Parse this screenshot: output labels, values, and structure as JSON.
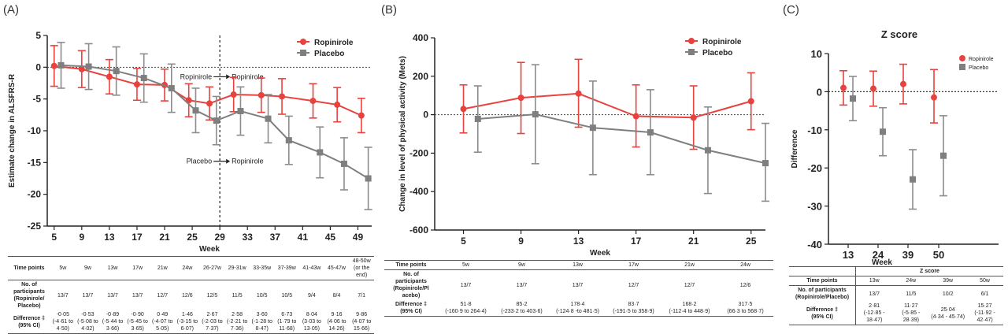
{
  "colors": {
    "ropinirole": "#e8423f",
    "placebo": "#7f7f7f",
    "ropinirole_err": "#e8423f",
    "placebo_err": "#8c8c8c"
  },
  "chart_data": [
    {
      "panel": "(A)",
      "type": "line",
      "title": "",
      "xlabel": "Week",
      "ylabel": "Estimate change in ALSFRS-R",
      "ylim": [
        -25,
        5
      ],
      "yticks": [
        5,
        0,
        -5,
        -10,
        -15,
        -20,
        -25
      ],
      "xticks": [
        5,
        9,
        13,
        17,
        21,
        25,
        29,
        33,
        37,
        41,
        45,
        49
      ],
      "xlim": [
        4,
        51
      ],
      "legend": "top-right",
      "series": [
        {
          "name": "Ropinirole",
          "marker": "circle",
          "x": [
            5,
            9,
            13,
            17,
            21,
            24.5,
            27.5,
            31,
            35,
            38,
            42.5,
            46,
            49.5
          ],
          "y": [
            0.2,
            -0.3,
            -1.5,
            -2.7,
            -2.8,
            -5.2,
            -5.7,
            -4.3,
            -4.4,
            -4.6,
            -5.3,
            -5.9,
            -7.6
          ],
          "lo": [
            -3.0,
            -3.2,
            -4.2,
            -5.2,
            -5.3,
            -7.8,
            -8.3,
            -7.0,
            -7.1,
            -7.4,
            -8.0,
            -8.6,
            -10.3
          ],
          "hi": [
            3.4,
            2.6,
            1.2,
            -0.2,
            -0.3,
            -2.6,
            -3.1,
            -1.6,
            -1.7,
            -1.8,
            -2.6,
            -3.2,
            -4.9
          ]
        },
        {
          "name": "Placebo",
          "marker": "square",
          "x": [
            6,
            10,
            14,
            18,
            22,
            25.5,
            28.5,
            32,
            36,
            39,
            43.5,
            47,
            50.5
          ],
          "y": [
            0.3,
            0.1,
            -0.6,
            -1.7,
            -3.3,
            -6.8,
            -8.4,
            -6.9,
            -8.1,
            -11.5,
            -13.4,
            -15.2,
            -17.5
          ],
          "lo": [
            -3.3,
            -3.5,
            -4.4,
            -5.5,
            -7.1,
            -10.3,
            -12.2,
            -10.7,
            -11.9,
            -15.3,
            -17.4,
            -19.3,
            -22.4
          ],
          "hi": [
            3.9,
            3.7,
            3.2,
            2.1,
            0.5,
            -3.3,
            -4.6,
            -3.1,
            -4.3,
            -7.7,
            -9.4,
            -11.1,
            -12.6
          ]
        }
      ],
      "annotations": [
        {
          "text": "Ropinirole",
          "arrow_to": "Ropinirole",
          "y": -1.5
        },
        {
          "text": "Placebo",
          "arrow_to": "Ropinirole",
          "y": -14.8
        }
      ],
      "vline_x": 29,
      "hline_y": 0
    },
    {
      "panel": "(B)",
      "type": "line",
      "title": "",
      "xlabel": "Week",
      "ylabel": "Change in level of physical activity (Mets)",
      "ylim": [
        -600,
        400
      ],
      "yticks": [
        400,
        200,
        0,
        -200,
        -400,
        -600
      ],
      "xticks": [
        5,
        9,
        13,
        17,
        21,
        25
      ],
      "xlim": [
        3,
        26
      ],
      "legend": "top-right",
      "series": [
        {
          "name": "Ropinirole",
          "marker": "circle",
          "x": [
            5,
            9,
            13,
            17,
            21,
            25
          ],
          "y": [
            30,
            88,
            110,
            -8,
            -15,
            70
          ],
          "lo": [
            -95,
            -98,
            -65,
            -168,
            -180,
            -78
          ],
          "hi": [
            155,
            272,
            288,
            155,
            150,
            218
          ]
        },
        {
          "name": "Placebo",
          "marker": "square",
          "x": [
            6,
            10,
            14,
            18,
            22,
            26
          ],
          "y": [
            -22,
            2,
            -68,
            -92,
            -185,
            -252
          ],
          "lo": [
            -195,
            -255,
            -312,
            -312,
            -410,
            -450
          ],
          "hi": [
            150,
            260,
            175,
            130,
            40,
            -45
          ]
        }
      ],
      "hline_y": 0
    },
    {
      "panel": "(C)",
      "type": "scatter",
      "title": "Z score",
      "xlabel": "Week",
      "ylabel": "Difference",
      "ylim": [
        -40,
        10
      ],
      "yticks": [
        10,
        0,
        -10,
        -20,
        -30,
        -40
      ],
      "xticks": [
        13,
        24,
        39,
        50
      ],
      "legend": "top-right",
      "series": [
        {
          "name": "Ropinirole",
          "marker": "circle",
          "y": [
            1.0,
            0.8,
            2.0,
            -1.5
          ],
          "lo": [
            -3.5,
            -3.8,
            -3.2,
            -8.2
          ],
          "hi": [
            5.5,
            5.4,
            7.2,
            5.8
          ]
        },
        {
          "name": "Placebo",
          "marker": "square",
          "y": [
            -1.8,
            -10.5,
            -23.0,
            -16.8
          ],
          "lo": [
            -7.6,
            -16.8,
            -30.8,
            -27.3
          ],
          "hi": [
            4.0,
            -4.2,
            -15.2,
            -6.3
          ]
        }
      ],
      "hline_y": 0
    }
  ],
  "tableA": {
    "rows": [
      {
        "label": "Time points",
        "cells": [
          "5w",
          "9w",
          "13w",
          "17w",
          "21w",
          "24w",
          "26-27w",
          "29-31w",
          "33-35w",
          "37-39w",
          "41-43w",
          "45-47w",
          "48-50w\n(or the end)"
        ]
      },
      {
        "label": "No. of\nparticipants\n(Ropinirole/\nPlacebo)",
        "cells": [
          "13/7",
          "13/7",
          "13/7",
          "13/7",
          "12/7",
          "12/6",
          "12/5",
          "11/5",
          "10/5",
          "10/5",
          "9/4",
          "8/4",
          "7/1"
        ]
      },
      {
        "label": "Difference ‡\n(95% CI)",
        "cells": [
          "-0·05\n(-4·61 to\n4·50)",
          "-0·53\n(-5·08 to\n4·02)",
          "-0·89\n(-5·44 to\n3·66)",
          "-0·90\n(-5·45 to\n3·65)",
          "0·49\n(-4·07 to\n5·05)",
          "1·46\n(-3·15 to\n6·07)",
          "2·67\n(-2·03 to\n7·37)",
          "2·58\n(-2·21 to\n7·36)",
          "3·60\n(-1·28 to\n8·47)",
          "6·73\n(1·79 to\n11·68)",
          "8·04\n(3·03 to\n13·05)",
          "9·16\n(4·06 to\n14·26)",
          "9·86\n(4·07 to 15·66)"
        ]
      }
    ]
  },
  "tableB": {
    "rows": [
      {
        "label": "Time points",
        "cells": [
          "5w",
          "9w",
          "13w",
          "17w",
          "21w",
          "24w"
        ]
      },
      {
        "label": "No. of\nparticipants\n(Ropinirole/Pl\nacebo)",
        "cells": [
          "13/7",
          "13/7",
          "13/7",
          "12/7",
          "12/7",
          "12/6"
        ]
      },
      {
        "label": "Difference ‡\n(95% CI)",
        "cells": [
          "51·8\n(-160·9 to 264·4)",
          "85·2\n(-233·2 to 403·6)",
          "178·4\n(-124·8 -to 481·5)",
          "83·7\n(-191·5 to 358·9)",
          "168·2\n(-112·4 to 448·9)",
          "317·5\n(66·3 to 568·7)"
        ]
      }
    ]
  },
  "tableC": {
    "header": "Z score",
    "rows": [
      {
        "label": "Time points",
        "cells": [
          "13w",
          "24w",
          "39w",
          "50w"
        ]
      },
      {
        "label": "No. of participants\n(Ropinirole/Placebo)",
        "cells": [
          "13/7",
          "11/5",
          "10/2",
          "6/1"
        ]
      },
      {
        "label": "Difference ‡\n(95% CI)",
        "cells": [
          "2·81\n(-12·85 - 18·47)",
          "11·27\n(-5·85 - 28·39)",
          "25·04\n(4·34 - 45·74)",
          "15·27\n(-11·92 - 42·47)"
        ]
      }
    ]
  }
}
